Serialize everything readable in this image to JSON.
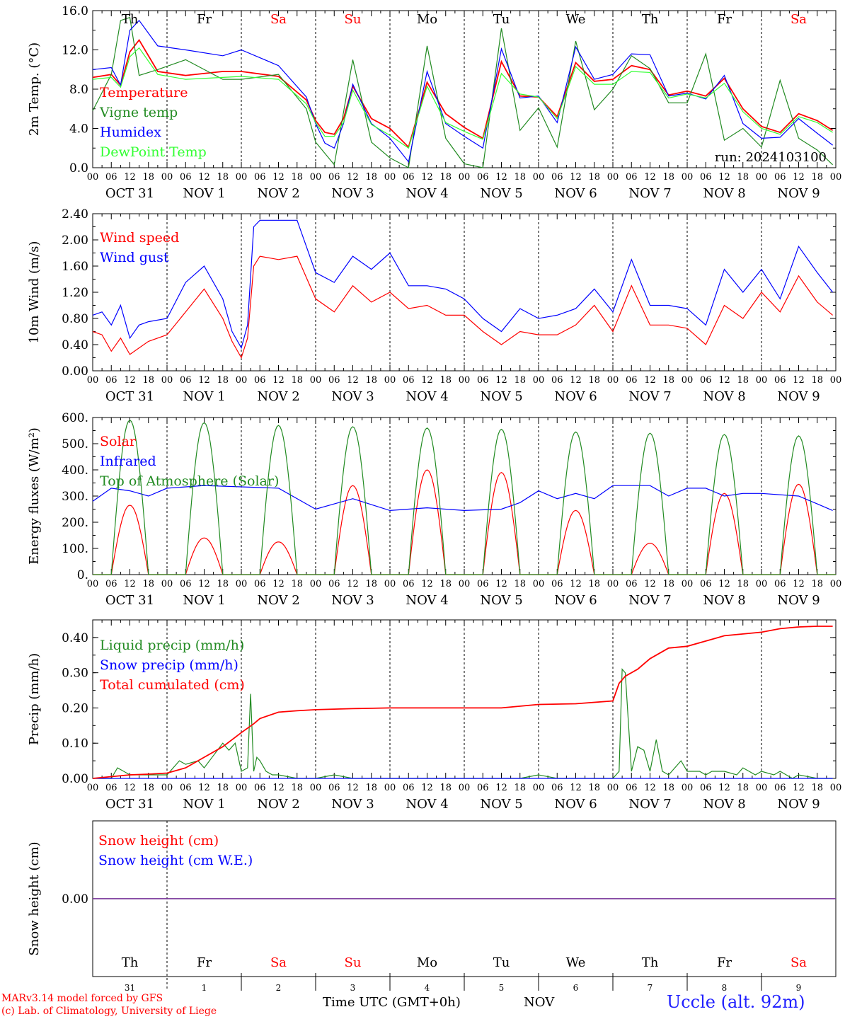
{
  "run_label": "run: 2024103100",
  "weekdays": [
    {
      "label": "Th",
      "color": "#000000"
    },
    {
      "label": "Fr",
      "color": "#000000"
    },
    {
      "label": "Sa",
      "color": "#ff0000"
    },
    {
      "label": "Su",
      "color": "#ff0000"
    },
    {
      "label": "Mo",
      "color": "#000000"
    },
    {
      "label": "Tu",
      "color": "#000000"
    },
    {
      "label": "We",
      "color": "#000000"
    },
    {
      "label": "Th",
      "color": "#000000"
    },
    {
      "label": "Fr",
      "color": "#000000"
    },
    {
      "label": "Sa",
      "color": "#ff0000"
    }
  ],
  "date_labels": [
    "OCT 31",
    "NOV  1",
    "NOV  2",
    "NOV  3",
    "NOV  4",
    "NOV  5",
    "NOV  6",
    "NOV  7",
    "NOV  8",
    "NOV  9"
  ],
  "hour_labels": [
    "00",
    "06",
    "12",
    "18"
  ],
  "bottom_day_numbers": [
    "31",
    "1",
    "2",
    "3",
    "4",
    "5",
    "6",
    "7",
    "8",
    "9"
  ],
  "footer": {
    "credit_line1": "MARv3.14 model forced by GFS",
    "credit_line2": "(c) Lab. of Climatology, University of Liege",
    "xaxis_title": "Time UTC (GMT+0h)",
    "month": "NOV",
    "station": "Uccle (alt. 92m)"
  },
  "chart_data": [
    {
      "type": "line",
      "ylabel": "2m Temp. (°C)",
      "ylim": [
        0,
        16
      ],
      "yticks": [
        "0.0",
        "4.0",
        "8.0",
        "12.0",
        "16.0"
      ],
      "x_unit": "hours since 2024-10-31 00 UTC",
      "series": [
        {
          "name": "Temperature",
          "color": "#ff0000",
          "x": [
            0,
            6,
            9,
            12,
            15,
            21,
            30,
            42,
            48,
            60,
            69,
            72,
            75,
            78,
            81,
            84,
            90,
            96,
            102,
            108,
            114,
            120,
            126,
            132,
            138,
            144,
            150,
            156,
            162,
            168,
            174,
            180,
            186,
            192,
            198,
            204,
            210,
            216,
            222,
            228,
            234,
            239
          ],
          "y": [
            9.2,
            9.5,
            8.4,
            11.8,
            13,
            9.8,
            9.4,
            9.8,
            9.8,
            9.3,
            6.9,
            4.8,
            3.6,
            3.4,
            5,
            8.3,
            5,
            4,
            2.1,
            8.7,
            5.5,
            4.1,
            3,
            10.8,
            7.3,
            7.2,
            5.2,
            10.7,
            8.8,
            9,
            10.4,
            10,
            7.4,
            7.8,
            7.3,
            9.1,
            6,
            4.2,
            3.6,
            5.5,
            4.8,
            3.8
          ]
        },
        {
          "name": "Vigne temp",
          "color": "#228b22",
          "x": [
            0,
            6,
            9,
            12,
            15,
            21,
            30,
            42,
            48,
            60,
            69,
            72,
            78,
            84,
            90,
            96,
            102,
            108,
            114,
            120,
            126,
            132,
            138,
            144,
            150,
            156,
            162,
            168,
            174,
            180,
            186,
            192,
            198,
            204,
            210,
            216,
            222,
            228,
            234,
            239
          ],
          "y": [
            5.8,
            9.5,
            15,
            15.3,
            9.4,
            10,
            11,
            9,
            9,
            9.5,
            6,
            2.6,
            0.3,
            11,
            2.6,
            1,
            0,
            12.4,
            3,
            0.4,
            0,
            14.2,
            3.8,
            6.1,
            2.1,
            12.9,
            5.9,
            8,
            11.4,
            10.1,
            6.6,
            6.6,
            11.6,
            2.8,
            4,
            2.1,
            8.9,
            3,
            1.8,
            0.3
          ]
        },
        {
          "name": "Humidex",
          "color": "#0000ff",
          "x": [
            0,
            6,
            9,
            12,
            15,
            21,
            30,
            42,
            48,
            60,
            69,
            72,
            75,
            78,
            81,
            84,
            90,
            96,
            102,
            108,
            114,
            120,
            126,
            132,
            138,
            144,
            150,
            156,
            162,
            168,
            174,
            180,
            186,
            192,
            198,
            204,
            210,
            216,
            222,
            228,
            234,
            239
          ],
          "y": [
            10,
            10.2,
            8.4,
            14,
            15,
            12.4,
            12,
            11.4,
            12,
            10.4,
            7.2,
            4.5,
            2.5,
            2,
            4.5,
            8.5,
            4.5,
            3,
            0.6,
            9.8,
            4.5,
            3.2,
            2,
            12.1,
            7.1,
            7.3,
            4.6,
            12.3,
            9,
            9.5,
            11.6,
            11.5,
            7.3,
            7.6,
            7,
            9.4,
            4.5,
            3,
            3.1,
            5,
            3.5,
            2.3
          ]
        },
        {
          "name": "DewPoint Temp",
          "color": "#33ff33",
          "x": [
            0,
            6,
            9,
            12,
            15,
            21,
            30,
            42,
            48,
            60,
            69,
            72,
            75,
            78,
            81,
            84,
            90,
            96,
            102,
            108,
            114,
            120,
            126,
            132,
            138,
            144,
            150,
            156,
            162,
            168,
            174,
            180,
            186,
            192,
            198,
            204,
            210,
            216,
            222,
            228,
            234,
            239
          ],
          "y": [
            9,
            9.2,
            8.2,
            11.3,
            12.2,
            9.5,
            9,
            9.2,
            9.3,
            9,
            6.5,
            4.6,
            3.2,
            3.2,
            4.6,
            7.9,
            4.4,
            3.3,
            2,
            8.3,
            4.6,
            3.7,
            2.9,
            9.6,
            7.5,
            7.2,
            5,
            10.3,
            8.5,
            8.5,
            9.8,
            9.7,
            7.1,
            7.5,
            7.1,
            8.6,
            5.7,
            4,
            3.4,
            5.2,
            4.6,
            3.6
          ]
        }
      ]
    },
    {
      "type": "line",
      "ylabel": "10m Wind (m/s)",
      "ylim": [
        0,
        2.4
      ],
      "yticks": [
        "0.00",
        "0.40",
        "0.80",
        "1.20",
        "1.60",
        "2.00",
        "2.40"
      ],
      "series": [
        {
          "name": "Wind speed",
          "color": "#ff0000",
          "x": [
            0,
            3,
            6,
            9,
            12,
            15,
            18,
            24,
            30,
            36,
            42,
            45,
            48,
            50,
            52,
            54,
            60,
            66,
            72,
            78,
            84,
            90,
            96,
            102,
            108,
            114,
            120,
            126,
            132,
            138,
            144,
            150,
            156,
            162,
            168,
            174,
            180,
            186,
            192,
            198,
            204,
            210,
            216,
            222,
            228,
            234,
            239
          ],
          "y": [
            0.6,
            0.55,
            0.3,
            0.5,
            0.25,
            0.35,
            0.45,
            0.55,
            0.9,
            1.25,
            0.8,
            0.45,
            0.2,
            0.5,
            1.6,
            1.75,
            1.7,
            1.75,
            1.1,
            0.9,
            1.3,
            1.05,
            1.2,
            0.95,
            1,
            0.85,
            0.85,
            0.6,
            0.4,
            0.6,
            0.55,
            0.55,
            0.7,
            1,
            0.6,
            1.3,
            0.7,
            0.7,
            0.65,
            0.4,
            1,
            0.8,
            1.2,
            0.9,
            1.45,
            1.05,
            0.85
          ]
        },
        {
          "name": "Wind gust",
          "color": "#0000ff",
          "x": [
            0,
            3,
            6,
            9,
            12,
            15,
            18,
            24,
            30,
            36,
            42,
            45,
            48,
            50,
            52,
            54,
            60,
            66,
            72,
            78,
            84,
            90,
            96,
            102,
            108,
            114,
            120,
            126,
            132,
            138,
            144,
            150,
            156,
            162,
            168,
            174,
            180,
            186,
            192,
            198,
            204,
            210,
            216,
            222,
            228,
            234,
            239
          ],
          "y": [
            0.85,
            0.9,
            0.7,
            1,
            0.5,
            0.7,
            0.75,
            0.8,
            1.35,
            1.6,
            1.1,
            0.6,
            0.35,
            0.7,
            2.2,
            2.3,
            2.3,
            2.3,
            1.5,
            1.35,
            1.75,
            1.55,
            1.8,
            1.3,
            1.3,
            1.25,
            1.1,
            0.8,
            0.6,
            0.95,
            0.8,
            0.85,
            0.95,
            1.25,
            0.9,
            1.7,
            1,
            1,
            0.95,
            0.7,
            1.55,
            1.2,
            1.55,
            1.1,
            1.9,
            1.5,
            1.2
          ]
        }
      ]
    },
    {
      "type": "line",
      "ylabel": "Energy fluxes (W/m²)",
      "ylim": [
        0,
        600
      ],
      "yticks": [
        "0.",
        "100.",
        "200.",
        "300.",
        "400.",
        "500.",
        "600."
      ],
      "series": [
        {
          "name": "Solar",
          "color": "#ff0000",
          "bumps": [
            265,
            140,
            125,
            340,
            400,
            390,
            245,
            120,
            310,
            345
          ]
        },
        {
          "name": "Infrared",
          "color": "#0000ff",
          "x": [
            0,
            6,
            12,
            18,
            24,
            36,
            48,
            60,
            72,
            84,
            96,
            108,
            120,
            132,
            138,
            144,
            150,
            156,
            162,
            168,
            180,
            186,
            192,
            198,
            204,
            210,
            216,
            228,
            234,
            239
          ],
          "y": [
            280,
            330,
            320,
            300,
            330,
            340,
            335,
            330,
            250,
            290,
            245,
            255,
            245,
            250,
            275,
            320,
            290,
            310,
            290,
            340,
            340,
            300,
            330,
            330,
            300,
            310,
            310,
            300,
            270,
            245
          ]
        },
        {
          "name": "Top of Atmosphere (Solar)",
          "color": "#228b22",
          "bumps": [
            590,
            580,
            570,
            565,
            560,
            555,
            545,
            540,
            535,
            530
          ]
        }
      ]
    },
    {
      "type": "line",
      "ylabel": "Precip (mm/h)",
      "ylim": [
        0,
        0.45
      ],
      "yticks": [
        "0.00",
        "0.10",
        "0.20",
        "0.30",
        "0.40"
      ],
      "series": [
        {
          "name": "Liquid precip (mm/h)",
          "color": "#228b22",
          "x": [
            0,
            6,
            8,
            10,
            12,
            18,
            24,
            28,
            30,
            34,
            36,
            42,
            44,
            46,
            48,
            50,
            51,
            52,
            53,
            54,
            56,
            58,
            60,
            66,
            72,
            78,
            84,
            90,
            96,
            102,
            108,
            114,
            120,
            126,
            132,
            138,
            144,
            150,
            156,
            162,
            168,
            170,
            171,
            172,
            174,
            176,
            178,
            180,
            182,
            184,
            186,
            190,
            192,
            196,
            198,
            200,
            204,
            208,
            210,
            212,
            214,
            216,
            220,
            222,
            224,
            226,
            228,
            234,
            239
          ],
          "y": [
            0,
            0,
            0.03,
            0.02,
            0.01,
            0.01,
            0.01,
            0.05,
            0.04,
            0.05,
            0.03,
            0.1,
            0.08,
            0.1,
            0.02,
            0.03,
            0.24,
            0.02,
            0.06,
            0.05,
            0.02,
            0.01,
            0.01,
            0,
            0,
            0.01,
            0,
            0,
            0,
            0,
            0,
            0,
            0,
            0,
            0,
            0,
            0.01,
            0,
            0,
            0,
            0,
            0.02,
            0.31,
            0.3,
            0.02,
            0.09,
            0.08,
            0.02,
            0.11,
            0.02,
            0.01,
            0.05,
            0.02,
            0.02,
            0.01,
            0.02,
            0.02,
            0.01,
            0.03,
            0.02,
            0.01,
            0.02,
            0.01,
            0.02,
            0.01,
            0,
            0.01,
            0,
            0
          ]
        },
        {
          "name": "Snow precip (mm/h)",
          "color": "#0000ff",
          "x": [
            0,
            239
          ],
          "y": [
            0,
            0
          ]
        },
        {
          "name": "Total cumulated (cm)",
          "color": "#ff0000",
          "x": [
            0,
            6,
            12,
            18,
            24,
            30,
            36,
            42,
            48,
            52,
            54,
            60,
            66,
            72,
            84,
            96,
            108,
            120,
            132,
            144,
            156,
            168,
            170,
            172,
            176,
            180,
            186,
            192,
            198,
            204,
            210,
            216,
            222,
            228,
            234,
            239
          ],
          "y": [
            0,
            0.005,
            0.01,
            0.012,
            0.015,
            0.03,
            0.06,
            0.09,
            0.13,
            0.155,
            0.17,
            0.188,
            0.192,
            0.195,
            0.198,
            0.2,
            0.2,
            0.2,
            0.2,
            0.21,
            0.212,
            0.22,
            0.27,
            0.29,
            0.31,
            0.34,
            0.37,
            0.375,
            0.39,
            0.405,
            0.41,
            0.415,
            0.425,
            0.43,
            0.432,
            0.432
          ]
        }
      ]
    },
    {
      "type": "line",
      "ylabel": "Snow height (cm)",
      "ylim": [
        -1,
        1
      ],
      "yticks": [
        "0.00"
      ],
      "series": [
        {
          "name": "Snow height (cm)",
          "color": "#ff0000",
          "x": [
            0,
            240
          ],
          "y": [
            0,
            0
          ]
        },
        {
          "name": "Snow height (cm W.E.)",
          "color": "#0000ff",
          "x": [
            0,
            240
          ],
          "y": [
            0,
            0
          ]
        }
      ]
    }
  ]
}
